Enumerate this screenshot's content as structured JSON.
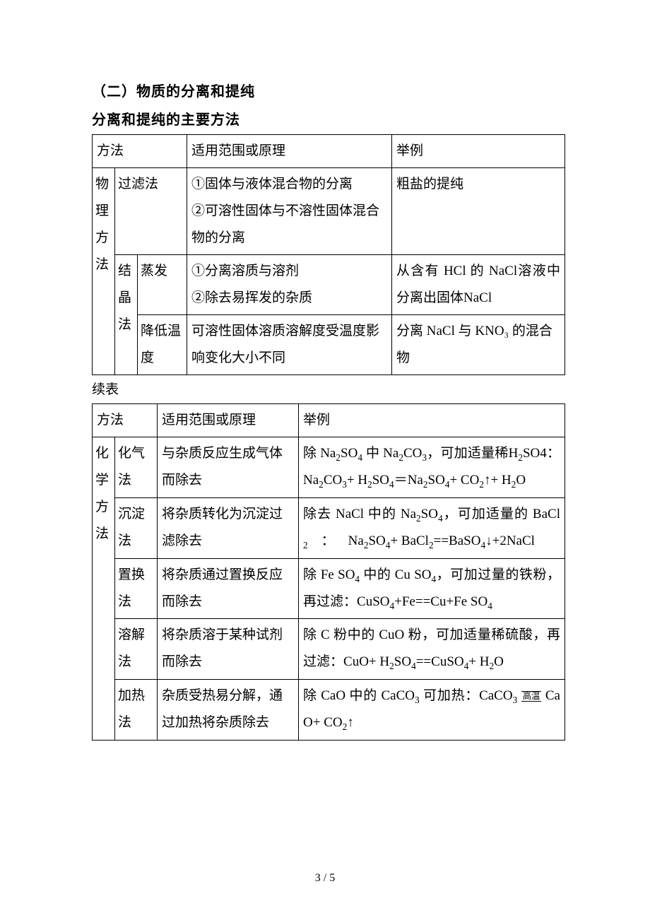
{
  "heading1": "（二）物质的分离和提纯",
  "heading2": "分离和提纯的主要方法",
  "continued_label": "续表",
  "page_number": "3 / 5",
  "table1": {
    "header": {
      "c1": "方法",
      "c2": "适用范围或原理",
      "c3": "举例"
    },
    "cat": "物理方法",
    "rows": [
      {
        "method_sub1": "过滤法",
        "scope": "①固体与液体混合物的分离\n②可溶性固体与不溶性固体混合物的分离",
        "example": "粗盐的提纯"
      },
      {
        "method_sub1": "结晶法",
        "method_sub2": "蒸发",
        "scope": "①分离溶质与溶剂\n②除去易挥发的杂质",
        "example": "从含有 HCl 的 NaCl溶液中分离出固体NaCl"
      },
      {
        "method_sub2": "降低温度",
        "scope": "可溶性固体溶质溶解度受温度影响变化大小不同",
        "example": "分离 NaCl 与 KNO₃ 的混合物"
      }
    ]
  },
  "table2": {
    "header": {
      "c1": "方法",
      "c2": "适用范围或原理",
      "c3": "举例"
    },
    "cat": "化学方法",
    "rows": [
      {
        "method": "化气法",
        "scope": "与杂质反应生成气体而除去",
        "example_html": "除 Na<span class='sub'>2</span>SO<span class='sub'>4</span> 中 Na<span class='sub'>2</span>CO<span class='sub'>3</span>，可加适量稀H<span class='sub'>2</span>SO4： Na<span class='sub'>2</span>CO<span class='sub'>3</span>+ H<span class='sub'>2</span>SO<span class='sub'>4</span>＝Na<span class='sub'>2</span>SO<span class='sub'>4</span>+ CO<span class='sub'>2</span>↑+ H<span class='sub'>2</span>O"
      },
      {
        "method": "沉淀法",
        "scope": "将杂质转化为沉淀过滤除去",
        "example_html": "除去 NaCl 中的 Na<span class='sub'>2</span>SO<span class='sub'>4</span>，可加适量的 BaCl<span class='sub'>2</span>&nbsp;&nbsp;&nbsp;&nbsp;：&nbsp;&nbsp;&nbsp;&nbsp;Na<span class='sub'>2</span>SO<span class='sub'>4</span>+ BaCl<span class='sub'>2</span>==BaSO<span class='sub'>4</span>↓+2NaCl"
      },
      {
        "method": "置换法",
        "scope": "将杂质通过置换反应而除去",
        "example_html": "除 Fe SO<span class='sub'>4</span> 中的 Cu SO<span class='sub'>4</span>，可加过量的铁粉，再过滤：CuSO<span class='sub'>4</span>+Fe==Cu+Fe SO<span class='sub'>4</span>"
      },
      {
        "method": "溶解法",
        "scope": "将杂质溶于某种试剂而除去",
        "example_html": "除 C 粉中的 CuO 粉，可加适量稀硫酸，再过滤：CuO+ H<span class='sub'>2</span>SO<span class='sub'>4</span>==CuSO<span class='sub'>4</span>+ H<span class='sub'>2</span>O"
      },
      {
        "method": "加热法",
        "scope": "杂质受热易分解，通过加热将杂质除去",
        "example_html": "除 CaO 中的 CaCO<span class='sub'>3</span> 可加热：CaCO<span class='sub'>3</span> <span class='cond'>高温</span> CaO+ CO<span class='sub'>2</span>↑"
      }
    ]
  }
}
